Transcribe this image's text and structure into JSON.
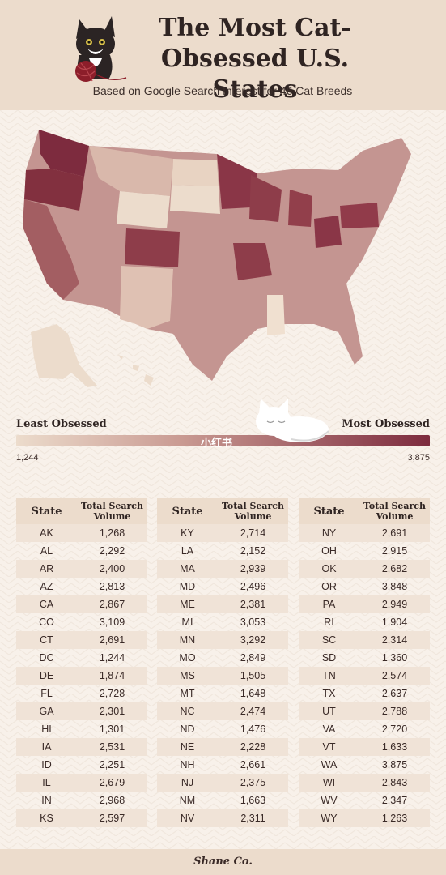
{
  "header": {
    "title_line1": "The Most Cat-",
    "title_line2": "Obsessed U.S. States",
    "subtitle": "Based on Google Search Interest for 46 Cat Breeds"
  },
  "colors": {
    "background": "#f8f1ea",
    "header_band": "#ecdccc",
    "scale_low": "#ecdccc",
    "scale_mid": "#c99a92",
    "scale_high": "#7d2b3e"
  },
  "legend": {
    "left_label": "Least Obsessed",
    "right_label": "Most Obsessed",
    "min_value": "1,244",
    "max_value": "3,875",
    "watermark": "小红书"
  },
  "table": {
    "state_header": "State",
    "volume_header_line1": "Total Search",
    "volume_header_line2": "Volume"
  },
  "chart_data": {
    "type": "table",
    "title": "The Most Cat-Obsessed U.S. States",
    "subtitle": "Based on Google Search Interest for 46 Cat Breeds",
    "columns": [
      "State",
      "Total Search Volume"
    ],
    "color_scale": {
      "min": 1244,
      "max": 3875,
      "low_label": "Least Obsessed",
      "high_label": "Most Obsessed"
    },
    "rows": [
      [
        "AK",
        "1,268"
      ],
      [
        "AL",
        "2,292"
      ],
      [
        "AR",
        "2,400"
      ],
      [
        "AZ",
        "2,813"
      ],
      [
        "CA",
        "2,867"
      ],
      [
        "CO",
        "3,109"
      ],
      [
        "CT",
        "2,691"
      ],
      [
        "DC",
        "1,244"
      ],
      [
        "DE",
        "1,874"
      ],
      [
        "FL",
        "2,728"
      ],
      [
        "GA",
        "2,301"
      ],
      [
        "HI",
        "1,301"
      ],
      [
        "IA",
        "2,531"
      ],
      [
        "ID",
        "2,251"
      ],
      [
        "IL",
        "2,679"
      ],
      [
        "IN",
        "2,968"
      ],
      [
        "KS",
        "2,597"
      ],
      [
        "KY",
        "2,714"
      ],
      [
        "LA",
        "2,152"
      ],
      [
        "MA",
        "2,939"
      ],
      [
        "MD",
        "2,496"
      ],
      [
        "ME",
        "2,381"
      ],
      [
        "MI",
        "3,053"
      ],
      [
        "MN",
        "3,292"
      ],
      [
        "MO",
        "2,849"
      ],
      [
        "MS",
        "1,505"
      ],
      [
        "MT",
        "1,648"
      ],
      [
        "NC",
        "2,474"
      ],
      [
        "ND",
        "1,476"
      ],
      [
        "NE",
        "2,228"
      ],
      [
        "NH",
        "2,661"
      ],
      [
        "NJ",
        "2,375"
      ],
      [
        "NM",
        "1,663"
      ],
      [
        "NV",
        "2,311"
      ],
      [
        "NY",
        "2,691"
      ],
      [
        "OH",
        "2,915"
      ],
      [
        "OK",
        "2,682"
      ],
      [
        "OR",
        "3,848"
      ],
      [
        "PA",
        "2,949"
      ],
      [
        "RI",
        "1,904"
      ],
      [
        "SC",
        "2,314"
      ],
      [
        "SD",
        "1,360"
      ],
      [
        "TN",
        "2,574"
      ],
      [
        "TX",
        "2,637"
      ],
      [
        "UT",
        "2,788"
      ],
      [
        "VA",
        "2,720"
      ],
      [
        "VT",
        "1,633"
      ],
      [
        "WA",
        "3,875"
      ],
      [
        "WI",
        "2,843"
      ],
      [
        "WV",
        "2,347"
      ],
      [
        "WY",
        "1,263"
      ]
    ]
  },
  "footer": {
    "brand": "Shane Co."
  }
}
